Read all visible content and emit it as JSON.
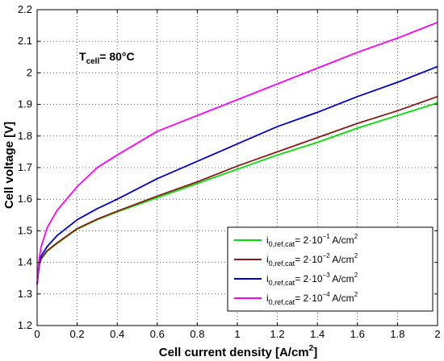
{
  "chart_data": {
    "type": "line",
    "title": "",
    "xlabel": "Cell current density [A/cm",
    "xlabel_sup": "2",
    "xlabel_end": "]",
    "ylabel": "Cell voltage [V]",
    "xlim": [
      0,
      2
    ],
    "ylim": [
      1.2,
      2.2
    ],
    "xticks": [
      0,
      0.2,
      0.4,
      0.6,
      0.8,
      1,
      1.2,
      1.4,
      1.6,
      1.8,
      2
    ],
    "xtick_labels": [
      "0",
      "0.2",
      "0.4",
      "0.6",
      "0.8",
      "1",
      "1.2",
      "1.4",
      "1.6",
      "1.8",
      "2"
    ],
    "yticks": [
      1.2,
      1.3,
      1.4,
      1.5,
      1.6,
      1.7,
      1.8,
      1.9,
      2.0,
      2.1,
      2.2
    ],
    "ytick_labels": [
      "1.2",
      "1.3",
      "1.4",
      "1.5",
      "1.6",
      "1.7",
      "1.8",
      "1.9",
      "2",
      "2.1",
      "2.2"
    ],
    "grid": true,
    "legend_position": "bottom-right",
    "annotation": {
      "main": "T",
      "sub": "cell",
      "rest": "= 80°C"
    },
    "series": [
      {
        "legend": {
          "prefix": "i",
          "sub": "0,ref,cat",
          "mid": "= 2·10",
          "exp": "−1",
          "unit": " A/cm",
          "unit_sup": "2"
        },
        "color": "#00e000",
        "x": [
          0,
          0.01,
          0.02,
          0.05,
          0.1,
          0.2,
          0.3,
          0.4,
          0.6,
          0.8,
          1.0,
          1.2,
          1.4,
          1.6,
          1.8,
          2.0
        ],
        "y": [
          1.33,
          1.39,
          1.41,
          1.435,
          1.46,
          1.505,
          1.535,
          1.56,
          1.605,
          1.65,
          1.695,
          1.74,
          1.78,
          1.825,
          1.865,
          1.905
        ]
      },
      {
        "legend": {
          "prefix": "i",
          "sub": "0,ref,cat",
          "mid": "= 2·10",
          "exp": "−2",
          "unit": " A/cm",
          "unit_sup": "2"
        },
        "color": "#8b1a1a",
        "x": [
          0,
          0.01,
          0.02,
          0.05,
          0.1,
          0.2,
          0.3,
          0.4,
          0.6,
          0.8,
          1.0,
          1.2,
          1.4,
          1.6,
          1.8,
          2.0
        ],
        "y": [
          1.33,
          1.392,
          1.412,
          1.437,
          1.462,
          1.507,
          1.537,
          1.562,
          1.61,
          1.655,
          1.705,
          1.75,
          1.795,
          1.84,
          1.88,
          1.925
        ]
      },
      {
        "legend": {
          "prefix": "i",
          "sub": "0,ref,cat",
          "mid": "= 2·10",
          "exp": "−3",
          "unit": " A/cm",
          "unit_sup": "2"
        },
        "color": "#0000cc",
        "x": [
          0,
          0.01,
          0.02,
          0.05,
          0.1,
          0.2,
          0.3,
          0.4,
          0.6,
          0.8,
          1.0,
          1.2,
          1.4,
          1.6,
          1.8,
          2.0
        ],
        "y": [
          1.33,
          1.395,
          1.42,
          1.45,
          1.485,
          1.535,
          1.57,
          1.6,
          1.665,
          1.72,
          1.775,
          1.83,
          1.875,
          1.925,
          1.97,
          2.02
        ]
      },
      {
        "legend": {
          "prefix": "i",
          "sub": "0,ref,cat",
          "mid": "= 2·10",
          "exp": "−4",
          "unit": " A/cm",
          "unit_sup": "2"
        },
        "color": "#ff00ff",
        "x": [
          0,
          0.01,
          0.02,
          0.05,
          0.1,
          0.2,
          0.3,
          0.4,
          0.6,
          0.8,
          1.0,
          1.2,
          1.4,
          1.6,
          1.8,
          2.0
        ],
        "y": [
          1.33,
          1.41,
          1.45,
          1.51,
          1.565,
          1.64,
          1.7,
          1.74,
          1.815,
          1.865,
          1.915,
          1.965,
          2.015,
          2.065,
          2.11,
          2.16
        ]
      }
    ]
  }
}
